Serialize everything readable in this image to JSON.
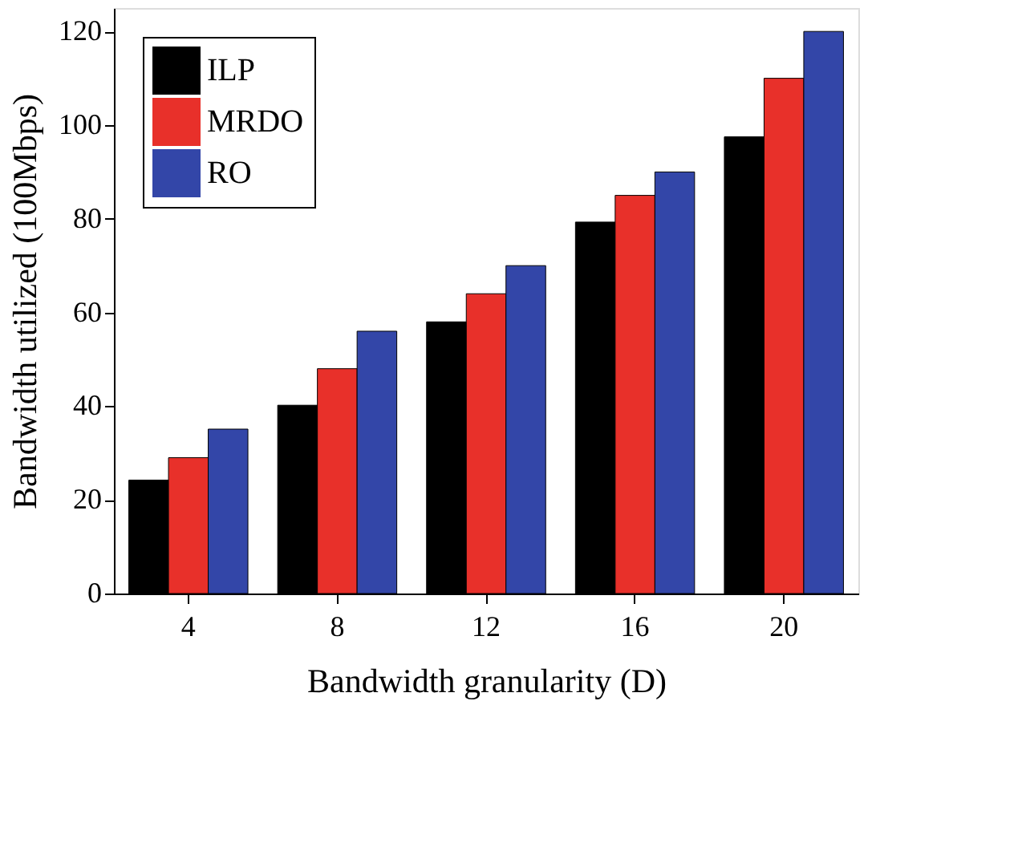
{
  "chart_data": {
    "type": "bar",
    "xlabel": "Bandwidth granularity (D)",
    "ylabel": "Bandwidth utilized (100Mbps)",
    "categories": [
      "4",
      "8",
      "12",
      "16",
      "20"
    ],
    "series": [
      {
        "name": "ILP",
        "color": "#000000",
        "values": [
          24.2,
          40.2,
          58,
          79.3,
          97.5
        ]
      },
      {
        "name": "MRDO",
        "color": "#e8302a",
        "values": [
          29,
          48,
          64,
          85,
          110
        ]
      },
      {
        "name": "RO",
        "color": "#3346a8",
        "values": [
          35.1,
          56,
          70,
          90,
          120
        ]
      }
    ],
    "ylim": [
      0,
      125
    ],
    "yticks": [
      0,
      20,
      40,
      60,
      80,
      100,
      120
    ],
    "grid": false,
    "legend": "top left"
  }
}
